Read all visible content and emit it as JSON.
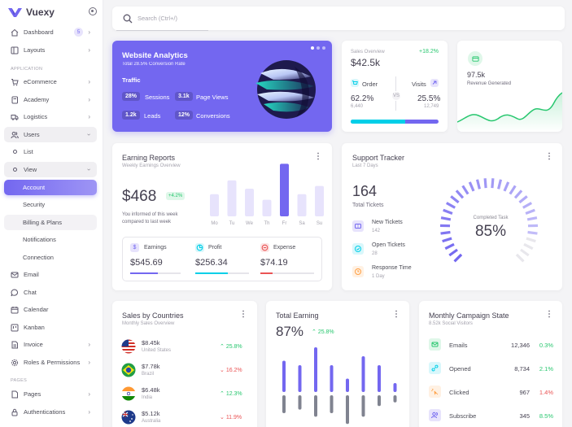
{
  "brand": {
    "name": "Vuexy"
  },
  "search": {
    "placeholder": "Search (Ctrl+/)"
  },
  "sidebar": {
    "sections": {
      "application": "APPLICATION",
      "pages": "PAGES"
    },
    "items": [
      {
        "label": "Dashboard",
        "badge": "5"
      },
      {
        "label": "Layouts"
      },
      {
        "label": "eCommerce"
      },
      {
        "label": "Academy"
      },
      {
        "label": "Logistics"
      },
      {
        "label": "Users"
      },
      {
        "label": "List"
      },
      {
        "label": "View"
      },
      {
        "label": "Account"
      },
      {
        "label": "Security"
      },
      {
        "label": "Billing & Plans"
      },
      {
        "label": "Notifications"
      },
      {
        "label": "Connection"
      },
      {
        "label": "Email"
      },
      {
        "label": "Chat"
      },
      {
        "label": "Calendar"
      },
      {
        "label": "Kanban"
      },
      {
        "label": "Invoice"
      },
      {
        "label": "Roles & Permissions"
      },
      {
        "label": "Pages"
      },
      {
        "label": "Authentications"
      }
    ]
  },
  "analytics": {
    "title": "Website Analytics",
    "subtitle": "Total 28.5% Conversion Rate",
    "section": "Traffic",
    "stats": [
      {
        "value": "28%",
        "label": "Sessions"
      },
      {
        "value": "3.1k",
        "label": "Page Views"
      },
      {
        "value": "1.2k",
        "label": "Leads"
      },
      {
        "value": "12%",
        "label": "Conversions"
      }
    ]
  },
  "sales": {
    "label": "Sales Overview",
    "change": "+18.2%",
    "total": "$42.5k",
    "order": {
      "label": "Order",
      "pct": "62.2%",
      "count": "6,440"
    },
    "visits": {
      "label": "Visits",
      "pct": "25.5%",
      "count": "12,749"
    },
    "vs": "VS",
    "progress": {
      "order_share": 0.62
    }
  },
  "revenue": {
    "value": "97.5k",
    "label": "Revenue Generated"
  },
  "earning": {
    "title": "Earning Reports",
    "subtitle": "Weekly Earnings Overview",
    "total": "$468",
    "change": "+4.2%",
    "note_line1": "You informed of this week",
    "note_line2": "compared to last week",
    "metrics": [
      {
        "label": "Earnings",
        "value": "$545.69",
        "color": "#7367f0",
        "progress": 0.55
      },
      {
        "label": "Profit",
        "value": "$256.34",
        "color": "#00cfe8",
        "progress": 0.6
      },
      {
        "label": "Expense",
        "value": "$74.19",
        "color": "#ea5455",
        "progress": 0.22
      }
    ]
  },
  "chart_data": {
    "type": "bar",
    "categories": [
      "Mo",
      "Tu",
      "We",
      "Th",
      "Fr",
      "Sa",
      "Su"
    ],
    "values": [
      40,
      65,
      50,
      30,
      95,
      40,
      55
    ],
    "highlight": "Fr"
  },
  "support": {
    "title": "Support Tracker",
    "subtitle": "Last 7 Days",
    "total": "164",
    "total_label": "Total Tickets",
    "rows": [
      {
        "label": "New Tickets",
        "value": "142"
      },
      {
        "label": "Open Tickets",
        "value": "28"
      },
      {
        "label": "Response Time",
        "value": "1 Day"
      }
    ],
    "gauge_label": "Completed Task",
    "gauge_value": "85%",
    "gauge_fraction": 0.85
  },
  "countries": {
    "title": "Sales by Countries",
    "subtitle": "Monthly Sales Overview",
    "rows": [
      {
        "value": "$8.45k",
        "country": "United States",
        "change": "25.8%",
        "dir": "up"
      },
      {
        "value": "$7.78k",
        "country": "Brazil",
        "change": "16.2%",
        "dir": "down"
      },
      {
        "value": "$6.48k",
        "country": "India",
        "change": "12.3%",
        "dir": "up"
      },
      {
        "value": "$5.12k",
        "country": "Australia",
        "change": "11.9%",
        "dir": "down"
      }
    ]
  },
  "total_earning": {
    "title": "Total Earning",
    "value": "87%",
    "change": "25.8%",
    "bars_up": [
      0.35,
      0.3,
      0.5,
      0.3,
      0.15,
      0.4,
      0.3,
      0.1
    ],
    "bars_down": [
      0.25,
      0.2,
      0.3,
      0.25,
      0.4,
      0.3,
      0.15,
      0.1
    ]
  },
  "campaign": {
    "title": "Monthly Campaign State",
    "subtitle": "8.52k Social Visitors",
    "rows": [
      {
        "label": "Emails",
        "count": "12,346",
        "pct": "0.3%",
        "dir": "up"
      },
      {
        "label": "Opened",
        "count": "8,734",
        "pct": "2.1%",
        "dir": "up"
      },
      {
        "label": "Clicked",
        "count": "967",
        "pct": "1.4%",
        "dir": "down"
      },
      {
        "label": "Subscribe",
        "count": "345",
        "pct": "8.5%",
        "dir": "up"
      }
    ]
  }
}
